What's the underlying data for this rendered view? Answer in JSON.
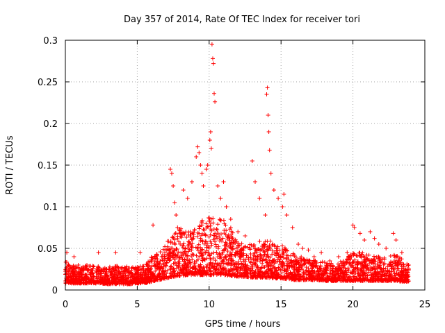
{
  "chart_data": {
    "type": "scatter",
    "title": "Day 357 of 2014, Rate Of TEC Index for receiver tori",
    "xlabel": "GPS time / hours",
    "ylabel": "ROTI / TECUs",
    "xlim": [
      0,
      25
    ],
    "ylim": [
      0,
      0.3
    ],
    "xticks": [
      0,
      5,
      10,
      15,
      20,
      25
    ],
    "xtick_labels": [
      "0",
      "5",
      "10",
      "15",
      "20",
      "25"
    ],
    "yticks": [
      0,
      0.05,
      0.1,
      0.15,
      0.2,
      0.25,
      0.3
    ],
    "ytick_labels": [
      "0",
      "0.05",
      "0.1",
      "0.15",
      "0.2",
      "0.25",
      "0.3"
    ],
    "grid": true,
    "marker": "+",
    "marker_color": "#ff0000",
    "series": [
      {
        "name": "ROTI",
        "x": [
          0.1,
          0.15,
          0.3,
          0.6,
          0.9,
          1.5,
          2.3,
          3.5,
          5.2,
          6.1,
          7.3,
          7.4,
          7.5,
          7.6,
          7.7,
          7.8,
          8.2,
          8.5,
          8.8,
          9.1,
          9.2,
          9.3,
          9.4,
          9.5,
          9.6,
          9.8,
          9.9,
          10.05,
          10.1,
          10.15,
          10.2,
          10.25,
          10.3,
          10.35,
          10.4,
          10.6,
          10.8,
          11.0,
          11.2,
          11.5,
          12.0,
          12.5,
          13.0,
          13.2,
          13.5,
          13.9,
          14.0,
          14.05,
          14.1,
          14.15,
          14.2,
          14.3,
          14.5,
          14.8,
          15.1,
          15.2,
          15.4,
          15.8,
          16.2,
          16.5,
          16.9,
          17.3,
          17.8,
          18.4,
          19.0,
          19.6,
          20.0,
          20.1,
          20.5,
          20.8,
          21.2,
          21.5,
          21.8,
          22.3,
          22.8,
          23.0,
          23.4
        ],
        "y": [
          0.045,
          0.02,
          0.025,
          0.04,
          0.03,
          0.03,
          0.045,
          0.045,
          0.045,
          0.078,
          0.145,
          0.14,
          0.125,
          0.105,
          0.09,
          0.075,
          0.12,
          0.11,
          0.13,
          0.16,
          0.172,
          0.165,
          0.15,
          0.14,
          0.125,
          0.145,
          0.15,
          0.18,
          0.19,
          0.17,
          0.295,
          0.278,
          0.272,
          0.236,
          0.226,
          0.125,
          0.11,
          0.13,
          0.1,
          0.085,
          0.07,
          0.065,
          0.155,
          0.13,
          0.11,
          0.09,
          0.235,
          0.243,
          0.21,
          0.19,
          0.168,
          0.14,
          0.12,
          0.11,
          0.1,
          0.115,
          0.09,
          0.075,
          0.055,
          0.05,
          0.048,
          0.04,
          0.045,
          0.035,
          0.04,
          0.045,
          0.078,
          0.075,
          0.068,
          0.06,
          0.07,
          0.062,
          0.055,
          0.05,
          0.068,
          0.06,
          0.045
        ]
      }
    ],
    "noise_band": {
      "x": [
        0,
        0.5,
        1,
        1.5,
        2,
        2.5,
        3,
        3.5,
        4,
        4.5,
        5,
        5.5,
        6,
        6.5,
        7,
        7.5,
        8,
        8.5,
        9,
        9.5,
        10,
        10.5,
        11,
        11.5,
        12,
        12.5,
        13,
        13.5,
        14,
        14.5,
        15,
        15.5,
        16,
        16.5,
        17,
        17.5,
        18,
        18.5,
        19,
        19.5,
        20,
        20.5,
        21,
        21.5,
        22,
        22.5,
        23,
        23.5,
        23.9
      ],
      "low": [
        0.008,
        0.008,
        0.008,
        0.008,
        0.008,
        0.008,
        0.007,
        0.007,
        0.007,
        0.007,
        0.008,
        0.008,
        0.01,
        0.012,
        0.014,
        0.016,
        0.017,
        0.018,
        0.018,
        0.018,
        0.018,
        0.018,
        0.018,
        0.017,
        0.016,
        0.016,
        0.015,
        0.015,
        0.015,
        0.014,
        0.014,
        0.013,
        0.012,
        0.012,
        0.012,
        0.012,
        0.011,
        0.011,
        0.011,
        0.011,
        0.011,
        0.011,
        0.011,
        0.011,
        0.011,
        0.011,
        0.011,
        0.01,
        0.01
      ],
      "high": [
        0.035,
        0.03,
        0.028,
        0.03,
        0.03,
        0.028,
        0.028,
        0.03,
        0.028,
        0.028,
        0.028,
        0.03,
        0.04,
        0.045,
        0.055,
        0.07,
        0.075,
        0.07,
        0.08,
        0.085,
        0.09,
        0.088,
        0.085,
        0.075,
        0.06,
        0.055,
        0.055,
        0.06,
        0.06,
        0.058,
        0.055,
        0.05,
        0.042,
        0.04,
        0.038,
        0.035,
        0.035,
        0.033,
        0.033,
        0.038,
        0.045,
        0.045,
        0.045,
        0.042,
        0.04,
        0.04,
        0.045,
        0.035,
        0.03
      ]
    }
  }
}
